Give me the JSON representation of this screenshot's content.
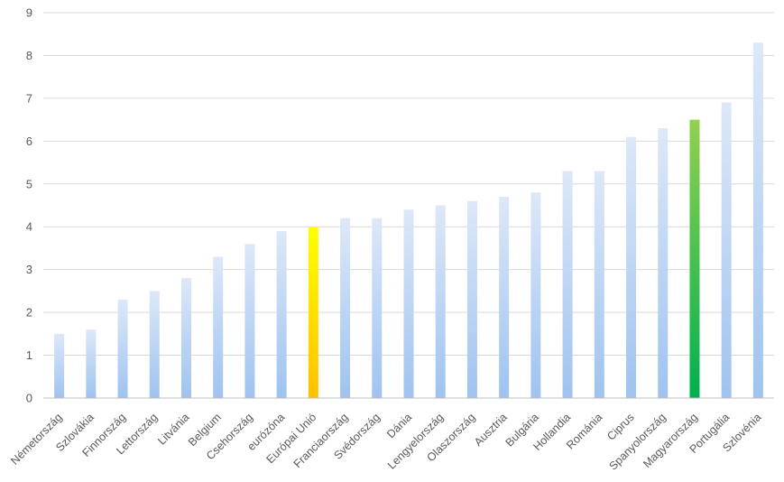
{
  "chart_data": {
    "type": "bar",
    "categories": [
      "Németország",
      "Szlovákia",
      "Finnország",
      "Lettország",
      "Litvánia",
      "Belgium",
      "Csehország",
      "eurózóna",
      "Európai Unió",
      "Franciaország",
      "Svédország",
      "Dánia",
      "Lengyelország",
      "Olaszország",
      "Ausztria",
      "Bulgária",
      "Hollandia",
      "Románia",
      "Ciprus",
      "Spanyolország",
      "Magyarország",
      "Portugália",
      "Szlovénia"
    ],
    "values": [
      1.5,
      1.6,
      2.3,
      2.5,
      2.8,
      3.3,
      3.6,
      3.9,
      4.0,
      4.2,
      4.2,
      4.4,
      4.5,
      4.6,
      4.7,
      4.8,
      5.3,
      5.3,
      6.1,
      6.3,
      6.5,
      6.9,
      8.3
    ],
    "highlight": {
      "eurózona": "yellow",
      "Európai Unió": "yellow",
      "Magyarország": "green"
    },
    "colors": {
      "default_top": "#dde8f8",
      "default_bottom": "#9fc3ef",
      "yellow_top": "#ffff00",
      "yellow_bottom": "#ffc000",
      "green_top": "#92d050",
      "green_bottom": "#00b050",
      "gridline": "#d9d9d9",
      "axis": "#bfbfbf"
    },
    "yticks": [
      0,
      1,
      2,
      3,
      4,
      5,
      6,
      7,
      8,
      9
    ],
    "ylim": [
      0,
      9
    ],
    "grid": true,
    "title": "",
    "xlabel": "",
    "ylabel": ""
  }
}
